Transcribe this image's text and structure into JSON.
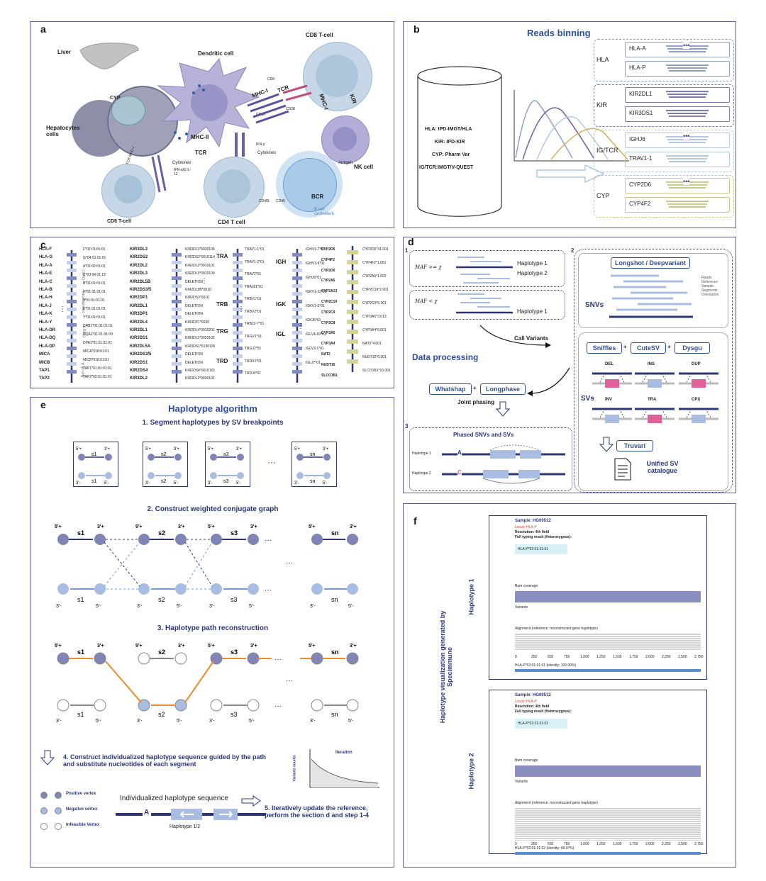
{
  "labels": {
    "a": "a",
    "b": "b",
    "c": "c",
    "d": "d",
    "e": "e",
    "f": "f"
  },
  "panel_a": {
    "liver": "Liver",
    "hepatocytes": "Hepatocytes cells",
    "cyp": "CYP",
    "cd8_top": "CD8 T-cell",
    "cd8_bottom": "CD8 T-cell",
    "dendritic": "Dendritic cell",
    "mhc1": "MHC-I",
    "tcr": "TCR",
    "mhc1b": "MHC-I",
    "kir": "KIR",
    "nk": "NK cell",
    "mhc2": "MHC-II",
    "tcr2": "TCR",
    "cytokines": "Cytokines",
    "cytokines2": "Cytokines",
    "cd4": "CD4 T cell",
    "bcr": "BCR",
    "bcell": "B cell (activated)",
    "antigen": "Antigen",
    "cd40l": "CD40L",
    "cd40": "CD40",
    "tcrmhc": "TCR MHC-I",
    "cd8": "CD8",
    "cd28": "CD28",
    "cd80": "CD80",
    "ifn": "IFN-γ",
    "il": "IFN-α/β IL-12"
  },
  "panel_b": {
    "title": "Reads binning",
    "db": [
      "HLA: IPD-IMGT/HLA",
      "KIR: IPD-KIR",
      "CYP: Pharm Var",
      "IG/TCR:IMGT/V-QUEST"
    ],
    "groups": [
      {
        "name": "HLA",
        "genes": [
          "HLA-A",
          "HLA-P"
        ],
        "color": "#8fa0c8"
      },
      {
        "name": "KIR",
        "genes": [
          "KIR2DL1",
          "KIR3DS1"
        ],
        "color": "#7a7bb0"
      },
      {
        "name": "IG/TCR",
        "genes": [
          "IGHJ6",
          "TRAV1-1"
        ],
        "color": "#b4c8e0"
      },
      {
        "name": "CYP",
        "genes": [
          "CYP2D6",
          "CYP4F2"
        ],
        "color": "#c9c98a"
      }
    ],
    "dots": "•••"
  },
  "panel_c": {
    "hla_genes": [
      "HLA-F",
      "HLA-G",
      "HLA-A",
      "HLA-E",
      "HLA-C",
      "HLA-B",
      "HLA-H",
      "HLA-J",
      "HLA-K",
      "HLA-Y",
      "HLA-DR",
      "HLA-DQ",
      "HLA-DP",
      "MICA",
      "MICB",
      "TAP1",
      "TAP2"
    ],
    "hla_alleles": [
      "F*02:01:01:01",
      "G*04:01:01:01",
      "A*01:02:01:01",
      "C*03:04:01:12",
      "B*01:01:01:01",
      "H*01:01:01:01",
      "J*01:01:01:01",
      "K*01:01:01:01",
      "Y*01:01:01:01",
      "DRB1*01:01:01:01",
      "DQA1*01:01:01:03",
      "DPA1*01:01:01:01",
      "MICA*018:01:01",
      "MICB*018:01:01",
      "TAP1*01:01:01:01",
      "TAP2*02:01:01:01"
    ],
    "kir_genes": [
      "KIR3DL3",
      "KIR2DS2",
      "KIR2DL2",
      "KIR2DL3",
      "KIR2DL5B",
      "KIR2DS3/5",
      "KIR2DP1",
      "KIR2DL1",
      "KIR3DP1",
      "KIR2DL4",
      "KIR3DL1",
      "KIR3DS1",
      "KIR2DL5A",
      "KIR2DS3/5",
      "KIR2DS1",
      "KIR2DS4",
      "KIR3DL2"
    ],
    "kir_alleles": [
      "KIR3DL3*0030106",
      "KIR2DS2*0010114",
      "KIR2DL2*0010101",
      "KIR2DL3*0010106",
      "DELETION",
      "KIR2DL5B*0010",
      "KIR2DS3*0010",
      "DELETION",
      "DELETION",
      "KIR3DP1*0030",
      "KIR2DL4*0010201",
      "KIR3DL1*0020103",
      "KIR3DS1*0130106",
      "DELETION",
      "DELETION",
      "KIR2DS4*0010101",
      "KIR3DL2*0030102"
    ],
    "tcr_genes": [
      "TRA",
      "TRB",
      "TRG",
      "TRD"
    ],
    "tcr_alleles": [
      "TRAV1-1*01",
      "TRAV1-2*01",
      "TRAV2*01",
      "TRAJ61*01",
      "TRBV1*01",
      "TRBV2*01",
      "TRBJ2-7*01",
      "TRGV1*01",
      "TRGJ2*01",
      "TRDV1*01",
      "TRDJ4*01"
    ],
    "ig_genes": [
      "IGH",
      "IGK",
      "IGL"
    ],
    "ig_alleles": [
      "IGHV3-7*03",
      "IGHV3-9*01",
      "IGHJ6*01",
      "IGKV1-12*01",
      "IGKV1-5*01",
      "IGKJ5*01",
      "IGLV4-69*01",
      "IGLV3-1*01",
      "IGLJ7*01"
    ],
    "cyp_genes": [
      "CYP2D6",
      "CYP4F2",
      "CYP2D6",
      "CYP2A6",
      "CYP2A13",
      "CYP2C19",
      "CYP2C9",
      "CYP2C8",
      "CYP3A5",
      "CYP3A4",
      "NAT2",
      "NUDT15",
      "SLCO1B1"
    ],
    "cyp_alleles": [
      "CYP2D6*41.001",
      "CYP4F2*1.001",
      "CYP2A6*1.002",
      "CYP2C19*2.001",
      "CYP2C9*6.001",
      "CYP3A5*3.013",
      "CYP3A4*6.001",
      "NAT2*4.001",
      "NUDT15*6.001",
      "SLCO1B1*16.001"
    ],
    "dots": "⋮",
    "cls1": "Class I",
    "cls2": "Class II",
    "pseudo": "pseudogenes",
    "nonhla": "Non-HLA"
  },
  "panel_d": {
    "sec1": "1",
    "sec2": "2",
    "sec3": "3",
    "maf_ge": "MAF >= χ",
    "maf_lt": "MAF < χ",
    "hap1": "Haplotype 1",
    "hap2": "Haplotype 2",
    "hap1b": "Haplotype 1",
    "call_variants": "Call Variants",
    "data_processing": "Data processing",
    "whatshap": "Whatshap",
    "longphase": "Longphase",
    "plus": "+",
    "joint": "Joint phasing",
    "phased": "Phased SNVs and SVs",
    "haplotype1": "Haplotype 1",
    "haplotype2": "Haplotype 2",
    "longshot": "Longshot / Deepvariant",
    "snvs": "SNVs",
    "svs": "SVs",
    "sniffles": "Sniffles",
    "cutesv": "CuteSV",
    "dysgu": "Dysgu",
    "sv_types": [
      "DEL",
      "INS",
      "DUP",
      "INV",
      "TRA",
      "CPX"
    ],
    "truvari": "Truvari",
    "unified": "Unified SV catalogue",
    "legend": [
      "Reads",
      "Reference",
      "Sample",
      "Segments",
      "Orientation"
    ],
    "allele_a": "A",
    "allele_c": "C"
  },
  "panel_e": {
    "title": "Haplotype algorithm",
    "step1": "1. Segment haplotypes by SV breakpoints",
    "step2": "2. Construct weighted conjugate graph",
    "step3": "3. Haplotype path reconstruction",
    "step4": "4. Construct individualized haplotype sequence guided by the path and  substitute nucleotides of each segment",
    "step5": "5. Iteratively update the reference, perform the section d and step 1-4",
    "ellipsis": "···",
    "seg_names": [
      "s1",
      "s2",
      "s3",
      "sn"
    ],
    "five_plus": "5'+",
    "three_plus": "3'+",
    "three_minus": "3'-",
    "five_minus": "5'-",
    "legend": [
      "Positive vertex",
      "Negative vertex",
      "Infeasible Vertex"
    ],
    "indiv": "Individualized haplotype sequence",
    "hap12": "Haplotype 1/2",
    "a": "A",
    "iteration": "Iteration",
    "variants_counts": "Variants counts"
  },
  "panel_f": {
    "side_title": "Haplotype visualization generated by Specimmune",
    "blocks": [
      {
        "hap": "Haplotype 1",
        "sample": "Sample:  HG00512",
        "locus": "Locus:  HLA-P",
        "resolution": "Resolution:    4th field",
        "full": "Full typing result (Heterozygous):",
        "allele": "HLA-P*02:01:01:01",
        "bam": "Bam coverage",
        "variants": "Variants",
        "alignment": "Alignment (reference: reconstructed gene haplotype)",
        "identity": "HLA-P*02:01:01:01 (identity: 100.00%)"
      },
      {
        "hap": "Haplotype 2",
        "sample": "Sample:  HG00512",
        "locus": "Locus:  HLA-P",
        "resolution": "Resolution:    4th field",
        "full": "Full typing result (Heterozygous):",
        "allele": "HLA-P*02:01:01:02",
        "bam": "Bam coverage",
        "variants": "Variants",
        "alignment": "Alignment (reference: reconstructed gene haplotype)",
        "identity": "HLA-P*02:01:01:02 (identity: 99.97%)"
      }
    ],
    "ticks": [
      "0",
      "250",
      "500",
      "750",
      "1,000",
      "1,250",
      "1,500",
      "1,750",
      "2,000",
      "2,250",
      "2,500",
      "2,750"
    ]
  },
  "colors": {
    "navy": "#2c3677",
    "blue": "#2f4f9e",
    "light": "#a9bde3",
    "orange": "#f08a2b",
    "pink": "#e0609a",
    "cell": "#b9cbe0"
  }
}
